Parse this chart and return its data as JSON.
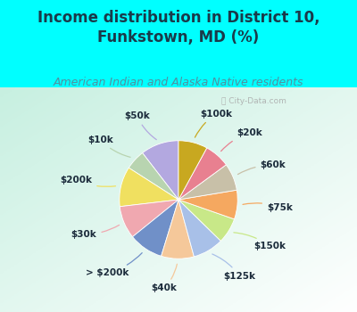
{
  "title": "Income distribution in District 10,\nFunkstown, MD (%)",
  "subtitle": "American Indian and Alaska Native residents",
  "watermark": "Ⓢ City-Data.com",
  "labels": [
    "$50k",
    "$10k",
    "$200k",
    "$30k",
    "> $200k",
    "$40k",
    "$125k",
    "$150k",
    "$75k",
    "$60k",
    "$20k",
    "$100k"
  ],
  "sizes": [
    10.5,
    5.5,
    11.0,
    9.0,
    9.5,
    9.0,
    8.5,
    7.0,
    8.0,
    7.5,
    7.0,
    8.0
  ],
  "colors": [
    "#b3a8e0",
    "#b8d4b0",
    "#f0e060",
    "#f0a8b0",
    "#7090c8",
    "#f5c89a",
    "#a8c0e8",
    "#c8e888",
    "#f5a860",
    "#c8c0a8",
    "#e88090",
    "#c8a820"
  ],
  "bg_color_top": "#00ffff",
  "title_color": "#1a3a4a",
  "subtitle_color": "#5090a0",
  "startangle": 90,
  "title_fontsize": 12,
  "subtitle_fontsize": 9,
  "label_fontsize": 7.5,
  "line_colors": [
    "#b3a8e0",
    "#b8d4b0",
    "#f0e060",
    "#f0a8b0",
    "#7090c8",
    "#f5c89a",
    "#a8c0e8",
    "#c8e888",
    "#f5a860",
    "#c8c0a8",
    "#e88090",
    "#c8a820"
  ]
}
